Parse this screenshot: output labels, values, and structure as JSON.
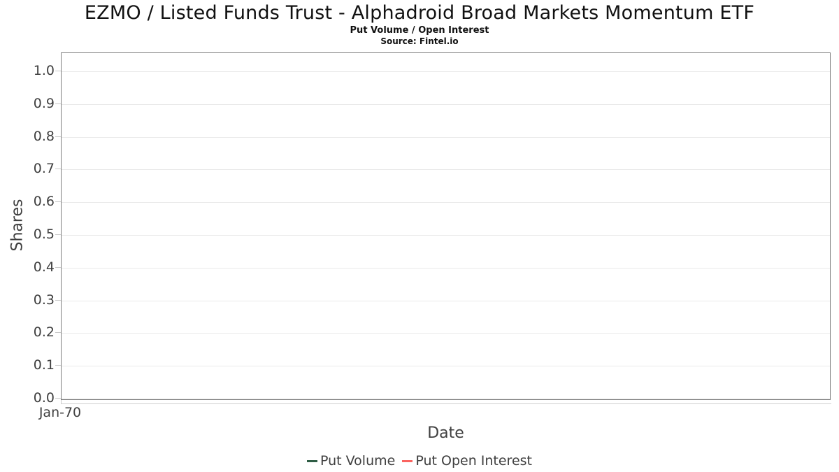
{
  "header": {
    "title": "EZMO / Listed Funds Trust - Alphadroid Broad Markets Momentum ETF",
    "subtitle": "Put Volume / Open Interest",
    "source": "Source: Fintel.io"
  },
  "chart_data": {
    "type": "line",
    "title": "EZMO / Listed Funds Trust - Alphadroid Broad Markets Momentum ETF",
    "subtitle": "Put Volume / Open Interest",
    "source": "Source: Fintel.io",
    "xlabel": "Date",
    "ylabel": "Shares",
    "ylim": [
      0.0,
      1.0
    ],
    "grid": true,
    "legend_position": "bottom",
    "yticks": [
      {
        "value": 0.0,
        "label": "0.0"
      },
      {
        "value": 0.1,
        "label": "0.1"
      },
      {
        "value": 0.2,
        "label": "0.2"
      },
      {
        "value": 0.3,
        "label": "0.3"
      },
      {
        "value": 0.4,
        "label": "0.4"
      },
      {
        "value": 0.5,
        "label": "0.5"
      },
      {
        "value": 0.6,
        "label": "0.6"
      },
      {
        "value": 0.7,
        "label": "0.7"
      },
      {
        "value": 0.8,
        "label": "0.8"
      },
      {
        "value": 0.9,
        "label": "0.9"
      },
      {
        "value": 1.0,
        "label": "1.0"
      }
    ],
    "xticks": [
      {
        "label": "Jan-70",
        "position": 0.0
      }
    ],
    "series": [
      {
        "name": "Put Volume",
        "color": "#2f5d45",
        "x": [],
        "values": []
      },
      {
        "name": "Put Open Interest",
        "color": "#fa6460",
        "x": [],
        "values": []
      }
    ]
  },
  "colors": {
    "plot_border": "#7e7e7e",
    "gridline": "#e9e9e9",
    "tick_mark": "#c9c9c9",
    "tick_text": "#3f3f3f",
    "title_text": "#111111"
  }
}
